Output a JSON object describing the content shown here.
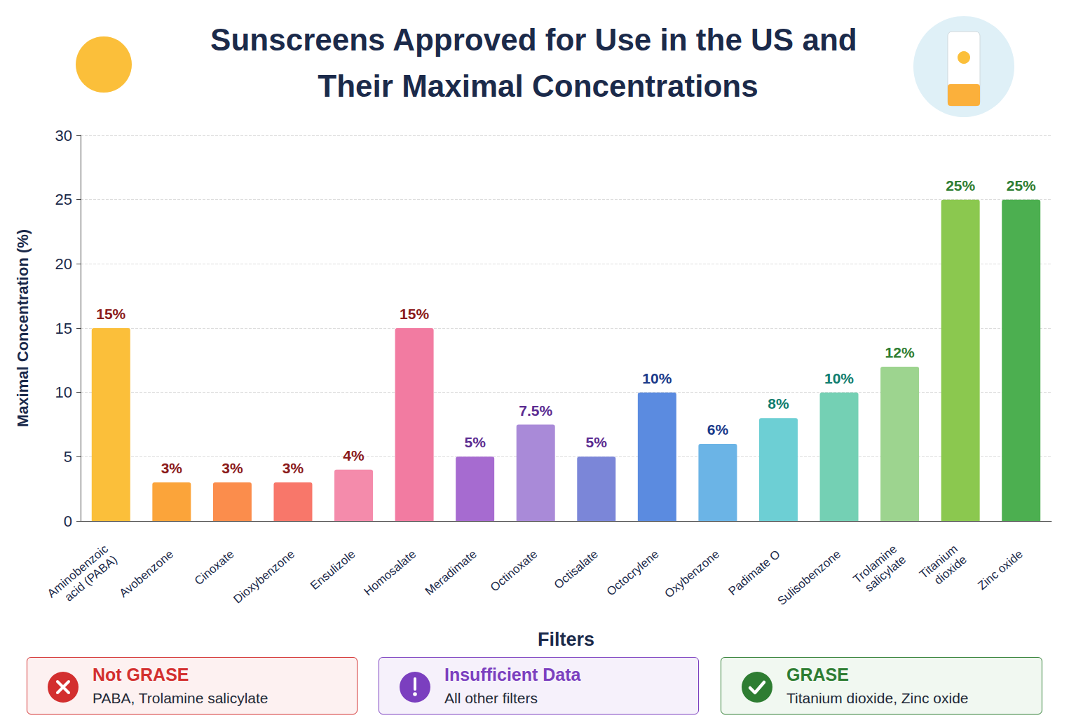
{
  "chart_data": {
    "type": "bar",
    "title": "Sunscreens Approved for Use in the US and Their Maximal Concentrations",
    "x_label": "Filters",
    "y_label": "Maximal Concentration (%)",
    "categories": [
      "Aminobenzoic acid (PABA)",
      "Avobenzone",
      "Cinoxate",
      "Dioxybenzone",
      "Ensulizole",
      "Homosalate",
      "Meradimate",
      "Octinoxate",
      "Octisalate",
      "Octocrylene",
      "Oxybenzone",
      "Padimate O",
      "Sulisobenzone",
      "Trolamine salicylate",
      "Titanium dioxide",
      "Zinc oxide"
    ],
    "values": [
      15,
      3,
      3,
      3,
      4,
      15,
      5,
      7.5,
      5,
      10,
      6,
      8,
      10,
      12,
      25,
      25
    ],
    "value_labels": [
      "15%",
      "3%",
      "3%",
      "3%",
      "4%",
      "15%",
      "5%",
      "7.5%",
      "5%",
      "10%",
      "6%",
      "8%",
      "10%",
      "12%",
      "25%",
      "25%"
    ],
    "colors": [
      "#fbbf3a",
      "#fba43a",
      "#fb8d4c",
      "#f8776a",
      "#f48bab",
      "#f27ba1",
      "#a66bd0",
      "#a98ad8",
      "#7b86d8",
      "#5b8be0",
      "#6bb4e6",
      "#6dcfd4",
      "#74d0b4",
      "#9dd48f",
      "#8bc84f",
      "#4caf50"
    ],
    "ylim": [
      0,
      30
    ],
    "yticks": [
      0,
      5,
      10,
      15,
      20,
      25,
      30
    ],
    "grid": true,
    "data_labels": true
  },
  "status_boxes": [
    {
      "heading": "Not GRASE",
      "text": "PABA, Trolamine salicylate",
      "color": "#d32f2f"
    },
    {
      "heading": "Insufficient Data",
      "text": "All other filters",
      "color": "#7b3fbf"
    },
    {
      "heading": "GRASE",
      "text": "Titanium dioxide, Zinc oxide",
      "color": "#2e7d32"
    }
  ]
}
